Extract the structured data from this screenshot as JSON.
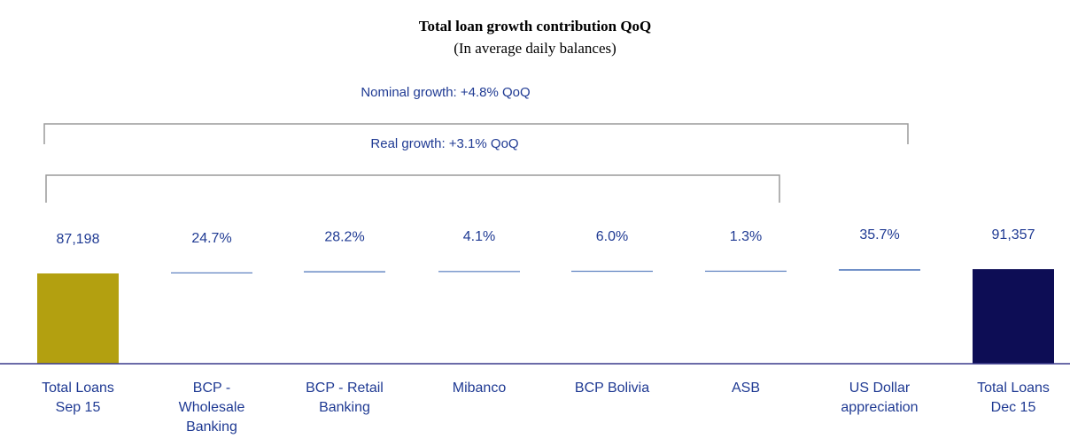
{
  "chart_data": {
    "type": "bar",
    "title": "Total loan growth contribution QoQ",
    "subtitle": "(In average daily balances)",
    "annotations": {
      "nominal": "Nominal growth: +4.8% QoQ",
      "real": "Real growth: +3.1% QoQ"
    },
    "categories": [
      [
        "Total Loans",
        "Sep 15"
      ],
      [
        "BCP -",
        "Wholesale",
        "Banking"
      ],
      [
        "BCP - Retail",
        "Banking"
      ],
      [
        "Mibanco"
      ],
      [
        "BCP Bolivia"
      ],
      [
        "ASB"
      ],
      [
        "US Dollar",
        "appreciation"
      ],
      [
        "Total Loans",
        "Dec 15"
      ]
    ],
    "bars": [
      {
        "kind": "total",
        "start": 0,
        "end": 87198,
        "label": "87,198",
        "color": "#b3a010"
      },
      {
        "kind": "step",
        "start": 87198,
        "end": 88225,
        "label": "24.7%",
        "color": "#5b7fbf"
      },
      {
        "kind": "step",
        "start": 88225,
        "end": 89398,
        "label": "28.2%",
        "color": "#5b7fbf"
      },
      {
        "kind": "step",
        "start": 89398,
        "end": 89568,
        "label": "4.1%",
        "color": "#5b7fbf"
      },
      {
        "kind": "step",
        "start": 89568,
        "end": 89818,
        "label": "6.0%",
        "color": "#5b7fbf"
      },
      {
        "kind": "step",
        "start": 89818,
        "end": 89872,
        "label": "1.3%",
        "color": "#5b7fbf"
      },
      {
        "kind": "step",
        "start": 89872,
        "end": 91357,
        "label": "35.7%",
        "color": "#5b7fbf"
      },
      {
        "kind": "total",
        "start": 0,
        "end": 91357,
        "label": "91,357",
        "color": "#0d0d55"
      }
    ]
  }
}
